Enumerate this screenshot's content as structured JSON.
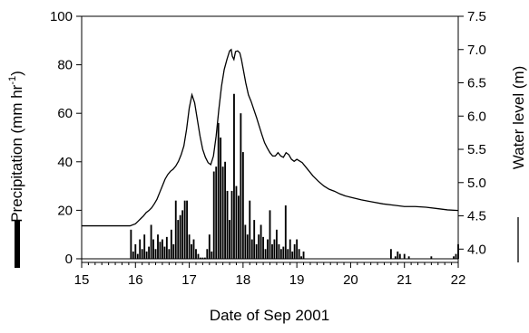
{
  "chart_data": {
    "type": "bar+line",
    "xlabel": "Date of Sep 2001",
    "ylabel_left": "Precipitation (mm hr",
    "ylabel_left_sup": "-1",
    "ylabel_left_close": ")",
    "ylabel_right": "Water level (m)",
    "xlim": [
      15,
      22
    ],
    "ylim_left": [
      -1.5,
      100
    ],
    "ylim_right": [
      3.8,
      7.5
    ],
    "x_ticks": [
      15,
      16,
      17,
      18,
      19,
      20,
      21,
      22
    ],
    "x_tick_labels": [
      "15",
      "16",
      "17",
      "18",
      "19",
      "20",
      "21",
      "22"
    ],
    "y_left_ticks": [
      0,
      20,
      40,
      60,
      80,
      100
    ],
    "y_left_tick_labels": [
      "0",
      "20",
      "40",
      "60",
      "80",
      "100"
    ],
    "y_right_ticks": [
      4.0,
      4.5,
      5.0,
      5.5,
      6.0,
      6.5,
      7.0,
      7.5
    ],
    "y_right_tick_labels": [
      "4.0",
      "4.5",
      "5.0",
      "5.5",
      "6.0",
      "6.5",
      "7.0",
      "7.5"
    ],
    "grid": false,
    "series": [
      {
        "kind": "bar",
        "axis": "left",
        "bar_width_days": 0.0417,
        "x": [
          15.917,
          15.958,
          16.0,
          16.042,
          16.083,
          16.125,
          16.167,
          16.208,
          16.25,
          16.292,
          16.333,
          16.375,
          16.417,
          16.458,
          16.5,
          16.542,
          16.583,
          16.625,
          16.667,
          16.708,
          16.75,
          16.792,
          16.833,
          16.875,
          16.917,
          16.958,
          17.0,
          17.042,
          17.083,
          17.125,
          17.167,
          17.208,
          17.25,
          17.292,
          17.333,
          17.375,
          17.417,
          17.458,
          17.5,
          17.542,
          17.583,
          17.625,
          17.667,
          17.708,
          17.75,
          17.792,
          17.833,
          17.875,
          17.917,
          17.958,
          18.0,
          18.042,
          18.083,
          18.125,
          18.167,
          18.208,
          18.25,
          18.292,
          18.333,
          18.375,
          18.417,
          18.458,
          18.5,
          18.542,
          18.583,
          18.625,
          18.667,
          18.708,
          18.75,
          18.792,
          18.833,
          18.875,
          18.917,
          18.958,
          19.0,
          19.042,
          19.083,
          19.125,
          20.75,
          20.833,
          20.875,
          20.917,
          21.0,
          21.083,
          21.5,
          21.917,
          21.958,
          22.0
        ],
        "values": [
          12,
          3,
          6,
          2,
          8,
          4,
          10,
          3,
          5,
          14,
          8,
          4,
          10,
          7,
          8,
          5,
          9,
          4,
          12,
          6,
          24,
          16,
          18,
          20,
          24,
          24,
          10,
          6,
          8,
          4,
          2,
          0.5,
          0.5,
          0.5,
          4,
          10,
          3,
          36,
          38,
          56,
          50,
          38,
          40,
          28,
          16,
          28,
          68,
          30,
          26,
          60,
          44,
          14,
          10,
          24,
          8,
          16,
          6,
          10,
          14,
          9,
          4,
          8,
          20,
          6,
          8,
          12,
          6,
          4,
          5,
          22,
          4,
          8,
          3,
          6,
          8,
          4,
          1,
          3,
          4,
          1,
          3,
          2,
          2,
          1,
          1,
          1,
          2,
          6
        ]
      },
      {
        "kind": "line",
        "axis": "right",
        "x": [
          15,
          15.5,
          15.9,
          16.0,
          16.05,
          16.1,
          16.15,
          16.2,
          16.25,
          16.3,
          16.35,
          16.4,
          16.45,
          16.5,
          16.55,
          16.6,
          16.65,
          16.7,
          16.75,
          16.8,
          16.85,
          16.9,
          16.95,
          17.0,
          17.05,
          17.1,
          17.15,
          17.2,
          17.25,
          17.3,
          17.35,
          17.4,
          17.45,
          17.5,
          17.55,
          17.6,
          17.65,
          17.7,
          17.75,
          17.78,
          17.8,
          17.83,
          17.86,
          17.9,
          17.94,
          17.97,
          18.0,
          18.05,
          18.1,
          18.15,
          18.2,
          18.25,
          18.3,
          18.35,
          18.4,
          18.45,
          18.5,
          18.55,
          18.6,
          18.65,
          18.7,
          18.75,
          18.8,
          18.85,
          18.9,
          18.95,
          19.0,
          19.1,
          19.2,
          19.3,
          19.4,
          19.5,
          19.6,
          19.7,
          19.8,
          19.9,
          20.0,
          20.2,
          20.4,
          20.6,
          20.8,
          21.0,
          21.2,
          21.4,
          21.6,
          21.8,
          22.0
        ],
        "values": [
          4.35,
          4.35,
          4.35,
          4.38,
          4.42,
          4.46,
          4.5,
          4.55,
          4.58,
          4.62,
          4.68,
          4.75,
          4.85,
          4.95,
          5.05,
          5.12,
          5.17,
          5.2,
          5.25,
          5.32,
          5.42,
          5.55,
          5.8,
          6.12,
          6.32,
          6.2,
          5.95,
          5.7,
          5.5,
          5.38,
          5.3,
          5.27,
          5.4,
          5.7,
          6.1,
          6.45,
          6.7,
          6.85,
          6.98,
          7.0,
          6.9,
          6.85,
          6.97,
          6.98,
          6.95,
          6.85,
          6.72,
          6.5,
          6.32,
          6.22,
          6.1,
          5.98,
          5.85,
          5.72,
          5.6,
          5.52,
          5.45,
          5.4,
          5.4,
          5.45,
          5.4,
          5.38,
          5.45,
          5.42,
          5.35,
          5.32,
          5.35,
          5.3,
          5.2,
          5.1,
          5.02,
          4.95,
          4.9,
          4.87,
          4.83,
          4.8,
          4.78,
          4.74,
          4.71,
          4.68,
          4.66,
          4.64,
          4.64,
          4.63,
          4.61,
          4.59,
          4.58
        ]
      }
    ]
  }
}
